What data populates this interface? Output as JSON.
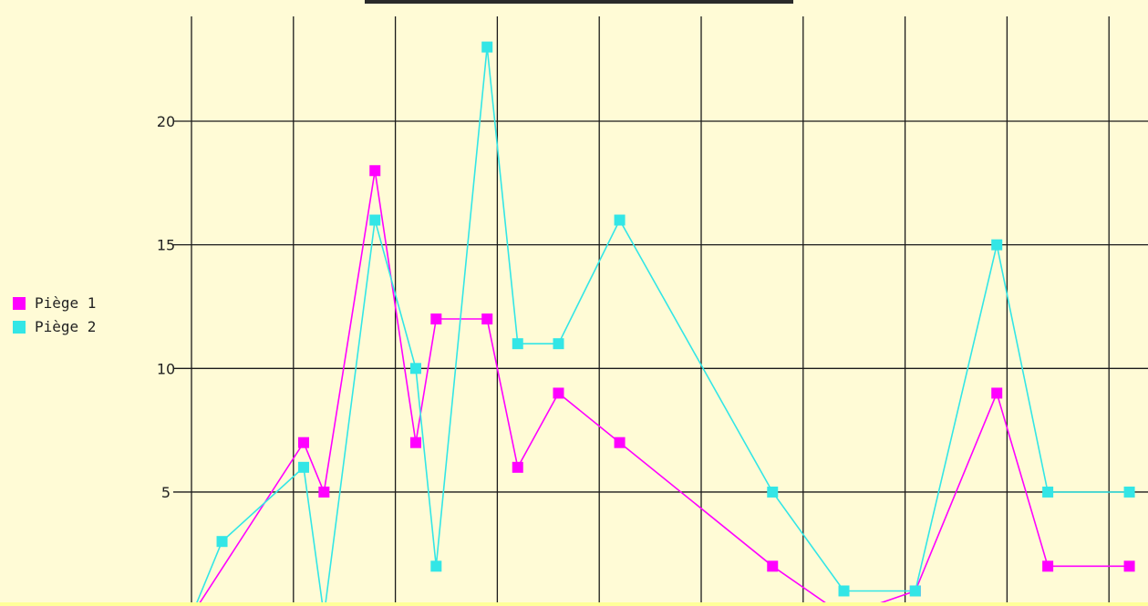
{
  "chart_data": {
    "type": "line",
    "title": "",
    "xlabel": "",
    "ylabel": "",
    "x_tick_count": 13,
    "ylim": [
      0,
      23.5
    ],
    "y_ticks": [
      "5",
      "10",
      "15",
      "20"
    ],
    "grid": true,
    "legend_placement": "left",
    "series": [
      {
        "name": "Piège 1",
        "color": "#ff00ff",
        "points": [
          {
            "x": 0.0,
            "y": 0
          },
          {
            "x": 1.1,
            "y": 7
          },
          {
            "x": 1.3,
            "y": 5
          },
          {
            "x": 1.8,
            "y": 18
          },
          {
            "x": 2.2,
            "y": 7
          },
          {
            "x": 2.4,
            "y": 12
          },
          {
            "x": 2.9,
            "y": 12
          },
          {
            "x": 3.2,
            "y": 6
          },
          {
            "x": 3.6,
            "y": 9
          },
          {
            "x": 4.2,
            "y": 7
          },
          {
            "x": 5.7,
            "y": 2
          },
          {
            "x": 6.4,
            "y": 0
          },
          {
            "x": 7.1,
            "y": 1
          },
          {
            "x": 7.9,
            "y": 9
          },
          {
            "x": 8.4,
            "y": 2
          },
          {
            "x": 9.2,
            "y": 2
          }
        ]
      },
      {
        "name": "Piège 2",
        "color": "#33e6e6",
        "points": [
          {
            "x": 0.0,
            "y": 0
          },
          {
            "x": 0.3,
            "y": 3
          },
          {
            "x": 1.1,
            "y": 6
          },
          {
            "x": 1.3,
            "y": 0
          },
          {
            "x": 1.8,
            "y": 16
          },
          {
            "x": 2.2,
            "y": 10
          },
          {
            "x": 2.4,
            "y": 2
          },
          {
            "x": 2.9,
            "y": 23
          },
          {
            "x": 3.2,
            "y": 11
          },
          {
            "x": 3.6,
            "y": 11
          },
          {
            "x": 4.2,
            "y": 16
          },
          {
            "x": 5.7,
            "y": 5
          },
          {
            "x": 6.4,
            "y": 1
          },
          {
            "x": 7.1,
            "y": 1
          },
          {
            "x": 7.9,
            "y": 15
          },
          {
            "x": 8.4,
            "y": 5
          },
          {
            "x": 9.2,
            "y": 5
          }
        ]
      }
    ]
  },
  "colors": {
    "background": "#fffbd6",
    "grid": "#1a1a1a",
    "series1": "#ff00ff",
    "series2": "#33e6e6"
  }
}
